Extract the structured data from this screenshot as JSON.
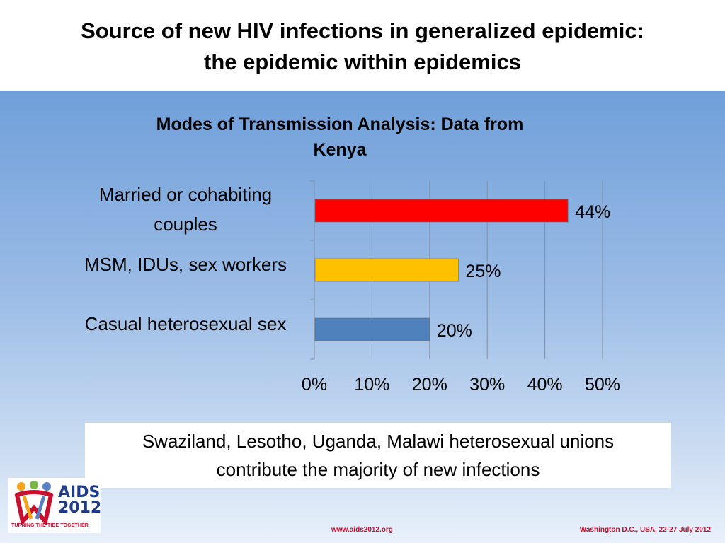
{
  "slide": {
    "title_line1": "Source of new HIV infections in generalized epidemic:",
    "title_line2": "the epidemic within epidemics",
    "note_line1": "Swaziland, Lesotho, Uganda, Malawi heterosexual unions",
    "note_line2": "contribute the majority of new infections"
  },
  "logo": {
    "text_line1": "AIDS",
    "text_line2": "2012",
    "tagline": "TURNING THE TIDE TOGETHER"
  },
  "footer": {
    "url": "www.aids2012.org",
    "event": "Washington D.C., USA, 22-27 July 2012"
  },
  "chart_data": {
    "type": "bar",
    "orientation": "horizontal",
    "title_line1": "Modes of Transmission Analysis: Data from",
    "title_line2": "Kenya",
    "categories": [
      [
        "Married or cohabiting",
        "couples"
      ],
      [
        "MSM, IDUs, sex workers"
      ],
      [
        "Casual heterosexual sex"
      ]
    ],
    "values": [
      44,
      25,
      20
    ],
    "data_labels": [
      "44%",
      "25%",
      "20%"
    ],
    "bar_colors": [
      "#ff0000",
      "#ffc000",
      "#4f81bd"
    ],
    "xlim": [
      0,
      50
    ],
    "x_ticks": [
      "0%",
      "10%",
      "20%",
      "30%",
      "40%",
      "50%"
    ],
    "grid": "vertical",
    "legend": "none"
  }
}
